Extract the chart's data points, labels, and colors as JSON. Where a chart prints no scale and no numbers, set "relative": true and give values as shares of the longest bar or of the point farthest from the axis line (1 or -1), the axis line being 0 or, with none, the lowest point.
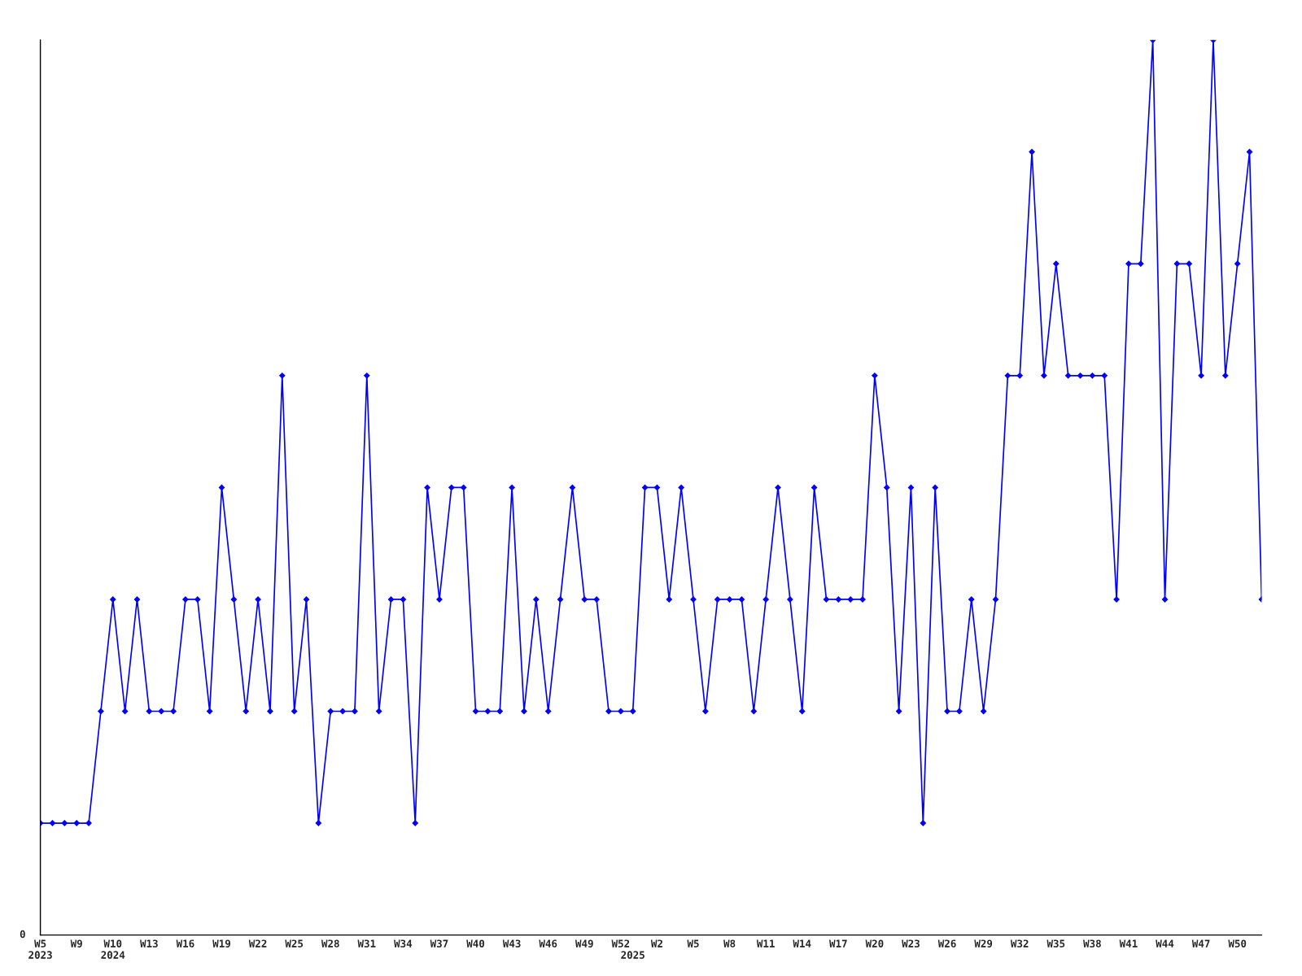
{
  "chart_data": {
    "type": "line",
    "relative": true,
    "categories": [
      "W5\n2023",
      null,
      null,
      "W9",
      null,
      null,
      "W10\n2024",
      null,
      null,
      "W13",
      null,
      null,
      "W16",
      null,
      null,
      "W19",
      null,
      null,
      "W22",
      null,
      null,
      "W25",
      null,
      null,
      "W28",
      null,
      null,
      "W31",
      null,
      null,
      "W34",
      null,
      null,
      "W37",
      null,
      null,
      "W40",
      null,
      null,
      "W43",
      null,
      null,
      "W46",
      null,
      null,
      "W49",
      null,
      null,
      "W52",
      "\n2025",
      null,
      "W2",
      null,
      null,
      "W5",
      null,
      null,
      "W8",
      null,
      null,
      "W11",
      null,
      null,
      "W14",
      null,
      null,
      "W17",
      null,
      null,
      "W20",
      null,
      null,
      "W23",
      null,
      null,
      "W26",
      null,
      null,
      "W29",
      null,
      null,
      "W32",
      null,
      null,
      "W35",
      null,
      null,
      "W38",
      null,
      null,
      "W41",
      null,
      null,
      "W44",
      null,
      null,
      "W47",
      null,
      null,
      "W50",
      null,
      null
    ],
    "series": [
      {
        "color": "#0000ff",
        "values": [
          0.125,
          0.125,
          0.125,
          0.125,
          0.125,
          0.25,
          0.375,
          0.25,
          0.375,
          0.25,
          0.25,
          0.25,
          0.375,
          0.375,
          0.25,
          0.5,
          0.375,
          0.25,
          0.375,
          0.25,
          0.625,
          0.25,
          0.375,
          0.125,
          0.25,
          0.25,
          0.25,
          0.625,
          0.25,
          0.375,
          0.375,
          0.125,
          0.5,
          0.375,
          0.5,
          0.5,
          0.25,
          0.25,
          0.25,
          0.5,
          0.25,
          0.375,
          0.25,
          0.375,
          0.5,
          0.375,
          0.375,
          0.25,
          0.25,
          0.25,
          0.5,
          0.5,
          0.375,
          0.5,
          0.375,
          0.25,
          0.375,
          0.375,
          0.375,
          0.25,
          0.375,
          0.5,
          0.375,
          0.25,
          0.5,
          0.375,
          0.375,
          0.375,
          0.375,
          0.625,
          0.5,
          0.25,
          0.5,
          0.125,
          0.5,
          0.25,
          0.25,
          0.375,
          0.25,
          0.375,
          0.625,
          0.625,
          0.875,
          0.625,
          0.75,
          0.625,
          0.625,
          0.625,
          0.625,
          0.375,
          0.75,
          0.75,
          1,
          0.375,
          0.75,
          0.75,
          0.625,
          1,
          0.625,
          0.75,
          0.875,
          0.375
        ]
      }
    ],
    "marker": "diamond",
    "line_style": "solid",
    "grid": false,
    "annotations": [
      "0"
    ]
  }
}
